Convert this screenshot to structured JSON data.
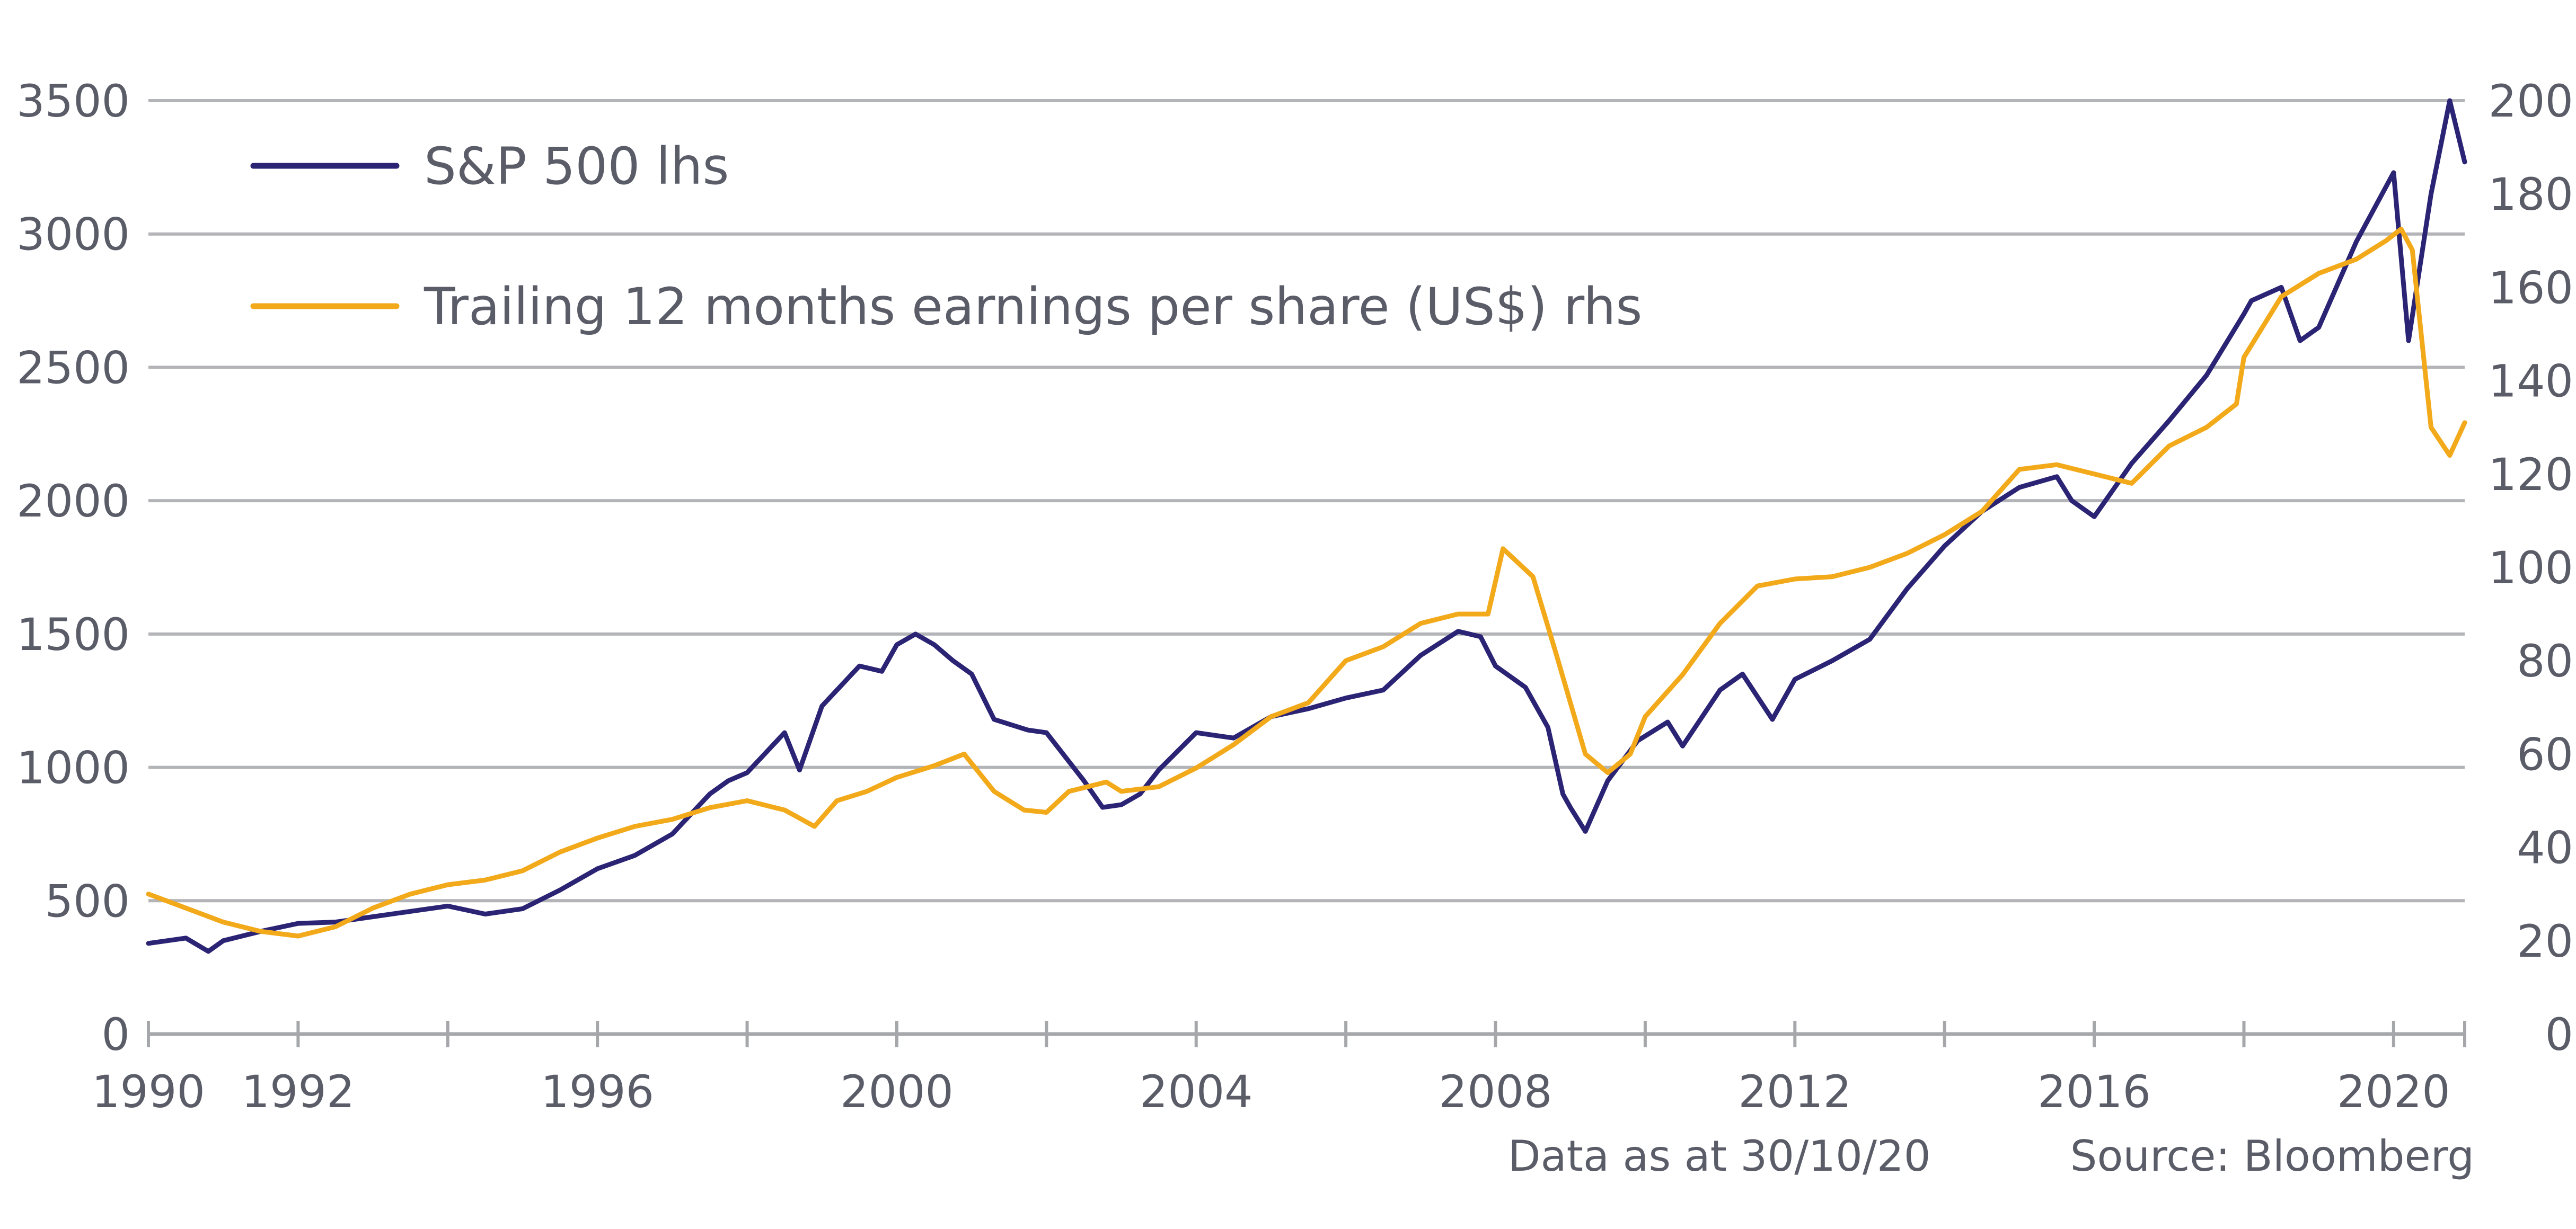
{
  "chart_data": {
    "type": "line",
    "title": "",
    "x_ticks": [
      "1990",
      "1992",
      "1996",
      "2000",
      "2004",
      "2008",
      "2012",
      "2016",
      "2020"
    ],
    "xlim": [
      1990.0,
      2020.95
    ],
    "y_left": {
      "ticks": [
        "0",
        "500",
        "1000",
        "1500",
        "2000",
        "2500",
        "3000",
        "3500"
      ],
      "ylim": [
        0,
        3500
      ]
    },
    "y_right": {
      "ticks": [
        "0",
        "20",
        "40",
        "60",
        "80",
        "100",
        "120",
        "140",
        "160",
        "180",
        "200"
      ],
      "ylim": [
        0,
        200
      ]
    },
    "grid": "horizontal",
    "legend_position": "top-left",
    "colors": {
      "sp500": "#2b2474",
      "eps": "#f2a91a"
    },
    "series": [
      {
        "name": "S&P 500 lhs",
        "axis": "left",
        "color": "#2b2474",
        "x": [
          1990.0,
          1990.5,
          1990.8,
          1991.0,
          1991.5,
          1992.0,
          1992.5,
          1993.0,
          1993.5,
          1994.0,
          1994.5,
          1995.0,
          1995.5,
          1996.0,
          1996.5,
          1997.0,
          1997.5,
          1997.75,
          1998.0,
          1998.5,
          1998.7,
          1999.0,
          1999.5,
          1999.8,
          2000.0,
          2000.25,
          2000.5,
          2000.75,
          2001.0,
          2001.3,
          2001.75,
          2002.0,
          2002.5,
          2002.75,
          2003.0,
          2003.25,
          2003.5,
          2004.0,
          2004.5,
          2005.0,
          2005.5,
          2006.0,
          2006.5,
          2007.0,
          2007.5,
          2007.8,
          2008.0,
          2008.4,
          2008.7,
          2008.9,
          2009.0,
          2009.2,
          2009.5,
          2009.9,
          2010.3,
          2010.5,
          2011.0,
          2011.3,
          2011.7,
          2012.0,
          2012.5,
          2013.0,
          2013.5,
          2014.0,
          2014.5,
          2015.0,
          2015.5,
          2015.7,
          2016.0,
          2016.5,
          2017.0,
          2017.5,
          2018.0,
          2018.1,
          2018.5,
          2018.75,
          2019.0,
          2019.5,
          2020.0,
          2020.2,
          2020.5,
          2020.75,
          2020.95
        ],
        "values": [
          340,
          360,
          310,
          350,
          385,
          415,
          420,
          440,
          460,
          480,
          450,
          470,
          540,
          620,
          670,
          750,
          900,
          950,
          980,
          1130,
          990,
          1230,
          1380,
          1360,
          1460,
          1500,
          1460,
          1400,
          1350,
          1180,
          1140,
          1130,
          950,
          850,
          860,
          900,
          990,
          1130,
          1110,
          1190,
          1220,
          1260,
          1290,
          1420,
          1510,
          1490,
          1380,
          1300,
          1150,
          900,
          850,
          760,
          950,
          1100,
          1170,
          1080,
          1290,
          1350,
          1180,
          1330,
          1400,
          1480,
          1670,
          1830,
          1960,
          2050,
          2090,
          2000,
          1940,
          2140,
          2300,
          2470,
          2700,
          2750,
          2800,
          2600,
          2650,
          2970,
          3230,
          2600,
          3150,
          3500,
          3270
        ]
      },
      {
        "name": "Trailing 12 months earnings per share (US$) rhs",
        "axis": "right",
        "color": "#f2a91a",
        "x": [
          1990.0,
          1990.5,
          1991.0,
          1991.5,
          1992.0,
          1992.5,
          1993.0,
          1993.5,
          1994.0,
          1994.5,
          1995.0,
          1995.5,
          1996.0,
          1996.5,
          1997.0,
          1997.5,
          1998.0,
          1998.5,
          1998.9,
          1999.2,
          1999.6,
          2000.0,
          2000.5,
          2000.9,
          2001.3,
          2001.7,
          2002.0,
          2002.3,
          2002.8,
          2003.0,
          2003.5,
          2004.0,
          2004.5,
          2005.0,
          2005.5,
          2006.0,
          2006.5,
          2007.0,
          2007.5,
          2007.9,
          2008.1,
          2008.5,
          2008.8,
          2009.2,
          2009.5,
          2009.8,
          2010.0,
          2010.5,
          2011.0,
          2011.5,
          2012.0,
          2012.5,
          2013.0,
          2013.5,
          2014.0,
          2014.5,
          2015.0,
          2015.5,
          2016.0,
          2016.5,
          2017.0,
          2017.5,
          2017.9,
          2018.0,
          2018.5,
          2019.0,
          2019.5,
          2019.9,
          2020.1,
          2020.25,
          2020.5,
          2020.75,
          2020.95
        ],
        "values": [
          30.0,
          27.0,
          24.0,
          22.0,
          21.0,
          23.0,
          27.0,
          30.0,
          32.0,
          33.0,
          35.0,
          39.0,
          42.0,
          44.5,
          46.0,
          48.5,
          50.0,
          48.0,
          44.5,
          50.0,
          52.0,
          55.0,
          57.5,
          60.0,
          52.0,
          48.0,
          47.5,
          52.0,
          54.0,
          52.0,
          53.0,
          57.0,
          62.0,
          68.0,
          71.0,
          80.0,
          83.0,
          88.0,
          90.0,
          90.0,
          104.0,
          98.0,
          82.0,
          60.0,
          56.0,
          60.0,
          68.0,
          77.0,
          88.0,
          96.0,
          97.5,
          98.0,
          100.0,
          103.0,
          107.0,
          112.0,
          121.0,
          122.0,
          120.0,
          118.0,
          126.0,
          130.0,
          135.0,
          145.0,
          158.0,
          163.0,
          166.0,
          170.0,
          172.5,
          168.0,
          130.0,
          124.0,
          131.0
        ]
      }
    ]
  },
  "footer": {
    "data_date": "Data as at 30/10/20",
    "source": "Source: Bloomberg"
  }
}
